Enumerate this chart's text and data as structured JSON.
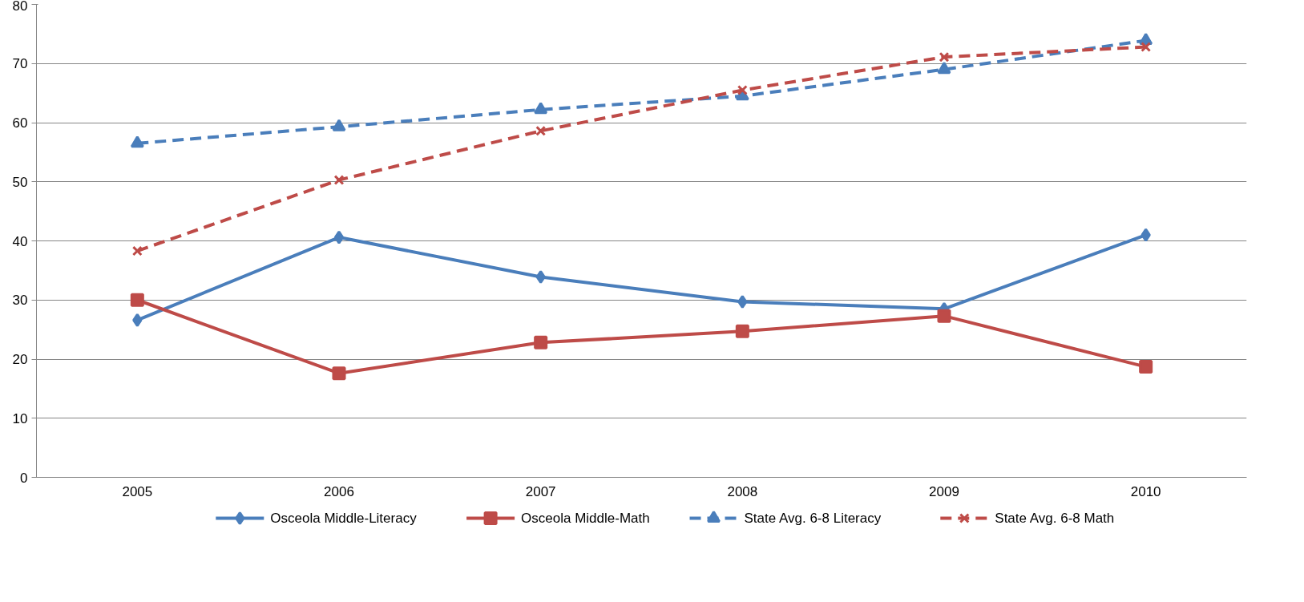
{
  "chart_data": {
    "type": "line",
    "categories": [
      "2005",
      "2006",
      "2007",
      "2008",
      "2009",
      "2010"
    ],
    "ylim": [
      0,
      80
    ],
    "yticks": [
      0,
      10,
      20,
      30,
      40,
      50,
      60,
      70,
      80
    ],
    "grid": "y",
    "legend": "bottom",
    "series": [
      {
        "name": "Osceola Middle-Literacy",
        "color": "#4a7ebb",
        "marker": "diamond",
        "line_style": "solid",
        "values": [
          26.6,
          40.6,
          33.9,
          29.7,
          28.5,
          41.0
        ]
      },
      {
        "name": "Osceola Middle-Math",
        "color": "#be4b48",
        "marker": "square",
        "line_style": "solid",
        "values": [
          30.0,
          17.6,
          22.8,
          24.7,
          27.3,
          18.7
        ]
      },
      {
        "name": "State Avg. 6-8 Literacy",
        "color": "#4a7ebb",
        "marker": "triangle",
        "line_style": "dashed",
        "values": [
          56.5,
          59.3,
          62.2,
          64.5,
          69.0,
          73.9
        ]
      },
      {
        "name": "State Avg. 6-8 Math",
        "color": "#be4b48",
        "marker": "cross",
        "line_style": "dashed",
        "values": [
          38.3,
          50.3,
          58.6,
          65.5,
          71.1,
          72.8
        ]
      }
    ]
  }
}
